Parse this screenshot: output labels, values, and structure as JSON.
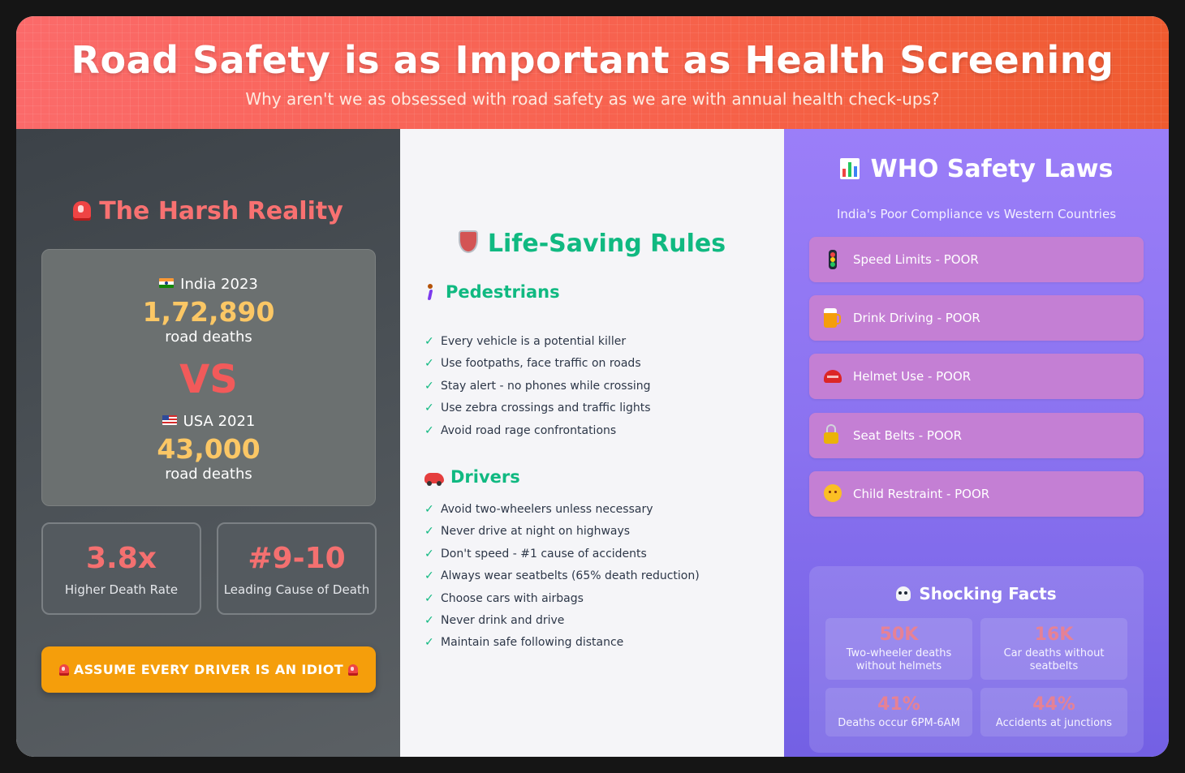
{
  "header": {
    "title": "Road Safety is as Important as Health Screening",
    "subtitle": "Why aren't we as obsessed with road safety as we are with annual health check-ups?"
  },
  "reality": {
    "title": "The Harsh Reality",
    "title_icon": "siren-icon",
    "india": {
      "flag": "india-flag-icon",
      "label": "India 2023",
      "number": "1,72,890",
      "unit": "road deaths"
    },
    "vs": "VS",
    "usa": {
      "flag": "usa-flag-icon",
      "label": "USA 2021",
      "number": "43,000",
      "unit": "road deaths"
    },
    "stats": [
      {
        "value": "3.8x",
        "label": "Higher Death Rate"
      },
      {
        "value": "#9-10",
        "label": "Leading Cause of Death"
      }
    ],
    "warning_button": "ASSUME EVERY DRIVER IS AN IDIOT"
  },
  "rules": {
    "title": "Life-Saving Rules",
    "title_icon": "shield-icon",
    "pedestrians": {
      "heading": "Pedestrians",
      "icon": "pedestrian-icon",
      "items": [
        "Every vehicle is a potential killer",
        "Use footpaths, face traffic on roads",
        "Stay alert - no phones while crossing",
        "Use zebra crossings and traffic lights",
        "Avoid road rage confrontations"
      ]
    },
    "drivers": {
      "heading": "Drivers",
      "icon": "car-icon",
      "items": [
        "Avoid two-wheelers unless necessary",
        "Never drive at night on highways",
        "Don't speed - #1 cause of accidents",
        "Always wear seatbelts (65% death reduction)",
        "Choose cars with airbags",
        "Never drink and drive",
        "Maintain safe following distance"
      ]
    },
    "check_mark": "✓"
  },
  "who": {
    "title": "WHO Safety Laws",
    "title_icon": "bar-chart-icon",
    "subtitle": "India's Poor Compliance vs Western Countries",
    "laws": [
      {
        "icon": "traffic-light-icon",
        "label": "Speed Limits - POOR"
      },
      {
        "icon": "beer-icon",
        "label": "Drink Driving - POOR"
      },
      {
        "icon": "helmet-icon",
        "label": "Helmet Use - POOR"
      },
      {
        "icon": "lock-icon",
        "label": "Seat Belts - POOR"
      },
      {
        "icon": "baby-icon",
        "label": "Child Restraint - POOR"
      }
    ],
    "facts": {
      "title": "Shocking Facts",
      "title_icon": "skull-icon",
      "items": [
        {
          "value": "50K",
          "label": "Two-wheeler deaths without helmets"
        },
        {
          "value": "16K",
          "label": "Car deaths without seatbelts"
        },
        {
          "value": "41%",
          "label": "Deaths occur 6PM-6AM"
        },
        {
          "value": "44%",
          "label": "Accidents at junctions"
        }
      ]
    }
  },
  "colors": {
    "header_gradient": [
      "#fb6a6a",
      "#ef5b30"
    ],
    "reality_accent": "#f87171",
    "number_gold": "#fbc765",
    "rules_green": "#10b981",
    "who_purple": "#8a72f0",
    "warning_orange": "#f59e0b"
  }
}
